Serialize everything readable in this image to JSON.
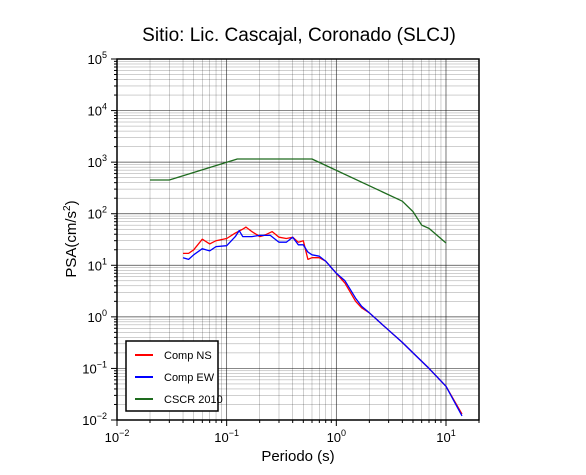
{
  "chart_data": {
    "type": "line",
    "title": "Sitio: Lic. Cascajal, Coronado (SLCJ)",
    "xlabel": "Periodo (s)",
    "ylabel_main": "PSA(cm/s",
    "ylabel_sup": "2",
    "ylabel_close": ")",
    "x_scale": "log",
    "y_scale": "log",
    "xlim": [
      0.01,
      20
    ],
    "ylim": [
      0.01,
      100000
    ],
    "grid": true,
    "legend_position": "bottom-left",
    "x_ticks": [
      {
        "value": 0.01,
        "base": "10",
        "exp": "−2"
      },
      {
        "value": 0.1,
        "base": "10",
        "exp": "−1"
      },
      {
        "value": 1,
        "base": "10",
        "exp": "0"
      },
      {
        "value": 10,
        "base": "10",
        "exp": "1"
      }
    ],
    "y_ticks": [
      {
        "value": 0.01,
        "base": "10",
        "exp": "−2"
      },
      {
        "value": 0.1,
        "base": "10",
        "exp": "−1"
      },
      {
        "value": 1,
        "base": "10",
        "exp": "0"
      },
      {
        "value": 10,
        "base": "10",
        "exp": "1"
      },
      {
        "value": 100,
        "base": "10",
        "exp": "2"
      },
      {
        "value": 1000,
        "base": "10",
        "exp": "3"
      },
      {
        "value": 10000,
        "base": "10",
        "exp": "4"
      },
      {
        "value": 100000,
        "base": "10",
        "exp": "5"
      }
    ],
    "series": [
      {
        "name": "Comp NS",
        "color": "#ff0000",
        "points": [
          [
            0.04,
            17
          ],
          [
            0.045,
            17
          ],
          [
            0.05,
            20
          ],
          [
            0.06,
            32
          ],
          [
            0.07,
            26
          ],
          [
            0.08,
            30
          ],
          [
            0.1,
            33
          ],
          [
            0.12,
            42
          ],
          [
            0.14,
            50
          ],
          [
            0.15,
            55
          ],
          [
            0.17,
            45
          ],
          [
            0.2,
            36
          ],
          [
            0.22,
            38
          ],
          [
            0.26,
            45
          ],
          [
            0.3,
            35
          ],
          [
            0.35,
            33
          ],
          [
            0.4,
            35
          ],
          [
            0.45,
            28
          ],
          [
            0.5,
            30
          ],
          [
            0.55,
            13
          ],
          [
            0.6,
            14
          ],
          [
            0.7,
            14
          ],
          [
            0.8,
            12
          ],
          [
            1.0,
            7
          ],
          [
            1.2,
            4.5
          ],
          [
            1.5,
            2.0
          ],
          [
            1.7,
            1.5
          ],
          [
            2.0,
            1.2
          ],
          [
            3.0,
            0.55
          ],
          [
            4.0,
            0.32
          ],
          [
            5.0,
            0.2
          ],
          [
            7.0,
            0.1
          ],
          [
            10.0,
            0.045
          ],
          [
            14.0,
            0.013
          ]
        ]
      },
      {
        "name": "Comp EW",
        "color": "#0000ff",
        "points": [
          [
            0.04,
            14
          ],
          [
            0.045,
            13
          ],
          [
            0.05,
            16
          ],
          [
            0.06,
            21
          ],
          [
            0.07,
            19
          ],
          [
            0.08,
            23
          ],
          [
            0.1,
            24
          ],
          [
            0.12,
            36
          ],
          [
            0.13,
            47
          ],
          [
            0.14,
            36
          ],
          [
            0.17,
            36
          ],
          [
            0.2,
            38
          ],
          [
            0.25,
            38
          ],
          [
            0.3,
            28
          ],
          [
            0.35,
            28
          ],
          [
            0.4,
            35
          ],
          [
            0.45,
            25
          ],
          [
            0.5,
            25
          ],
          [
            0.55,
            18
          ],
          [
            0.6,
            16
          ],
          [
            0.7,
            15
          ],
          [
            0.8,
            12
          ],
          [
            1.0,
            7
          ],
          [
            1.2,
            5
          ],
          [
            1.5,
            2.3
          ],
          [
            1.7,
            1.6
          ],
          [
            2.0,
            1.2
          ],
          [
            3.0,
            0.55
          ],
          [
            4.0,
            0.32
          ],
          [
            5.0,
            0.2
          ],
          [
            7.0,
            0.1
          ],
          [
            10.0,
            0.045
          ],
          [
            14.0,
            0.012
          ]
        ]
      },
      {
        "name": "CSCR 2010",
        "color": "#1e6b1e",
        "points": [
          [
            0.02,
            450
          ],
          [
            0.03,
            450
          ],
          [
            0.125,
            1150
          ],
          [
            0.6,
            1150
          ],
          [
            4.0,
            175
          ],
          [
            5.0,
            110
          ],
          [
            6.0,
            60
          ],
          [
            7.0,
            52
          ],
          [
            10.0,
            27
          ]
        ]
      }
    ]
  }
}
